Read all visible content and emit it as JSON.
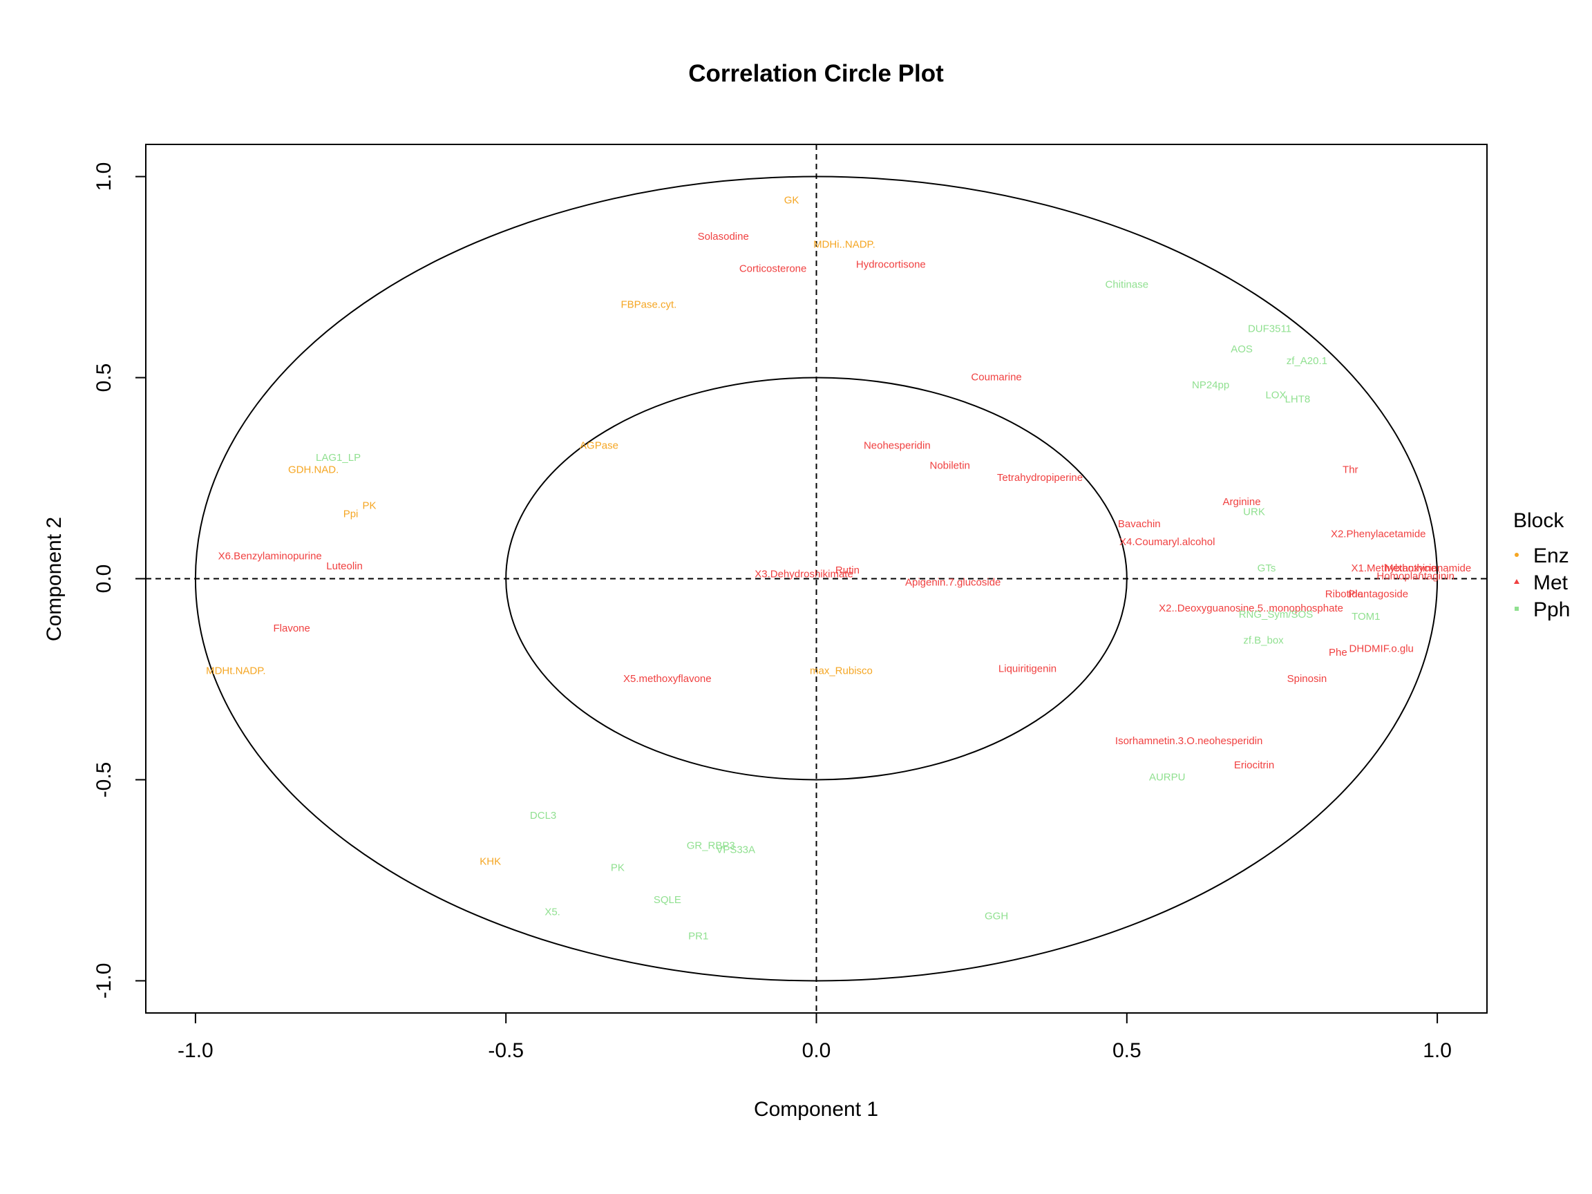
{
  "chart_data": {
    "type": "scatter",
    "title": "Correlation Circle Plot",
    "xlabel": "Component  1",
    "ylabel": "Component  2",
    "xlim": [
      -1.08,
      1.08
    ],
    "ylim": [
      -1.08,
      1.08
    ],
    "xticks": [
      -1.0,
      -0.5,
      0.0,
      0.5,
      1.0
    ],
    "yticks": [
      -1.0,
      -0.5,
      0.0,
      0.5,
      1.0
    ],
    "xtick_labels": [
      "-1.0",
      "-0.5",
      "0.0",
      "0.5",
      "1.0"
    ],
    "ytick_labels": [
      "-1.0",
      "-0.5",
      "0.0",
      "0.5",
      "1.0"
    ],
    "circles": [
      1.0,
      0.5
    ],
    "colors": {
      "Enz": "#F5A623",
      "Met": "#F04040",
      "Pph": "#90E090"
    },
    "legend": {
      "title": "Block",
      "position": "right",
      "items": [
        {
          "name": "Enz",
          "color": "#F5A623",
          "marker": "dot"
        },
        {
          "name": "Met",
          "color": "#F04040",
          "marker": "triangle"
        },
        {
          "name": "Pph",
          "color": "#90E090",
          "marker": "square"
        }
      ]
    },
    "series": [
      {
        "name": "Enz",
        "points": [
          {
            "label": "GK",
            "x": -0.04,
            "y": 0.94
          },
          {
            "label": "MDHi..NADP.",
            "x": 0.045,
            "y": 0.83
          },
          {
            "label": "FBPase.cyt.",
            "x": -0.27,
            "y": 0.68
          },
          {
            "label": "AGPase",
            "x": -0.35,
            "y": 0.33
          },
          {
            "label": "GDH.NAD.",
            "x": -0.81,
            "y": 0.27
          },
          {
            "label": "PK",
            "x": -0.72,
            "y": 0.18
          },
          {
            "label": "Ppi",
            "x": -0.75,
            "y": 0.16
          },
          {
            "label": "MDHt.NADP.",
            "x": -0.935,
            "y": -0.23
          },
          {
            "label": "max_Rubisco",
            "x": 0.04,
            "y": -0.23
          },
          {
            "label": "KHK",
            "x": -0.525,
            "y": -0.705
          }
        ]
      },
      {
        "name": "Met",
        "points": [
          {
            "label": "Solasodine",
            "x": -0.15,
            "y": 0.85
          },
          {
            "label": "Corticosterone",
            "x": -0.07,
            "y": 0.77
          },
          {
            "label": "Hydrocortisone",
            "x": 0.12,
            "y": 0.78
          },
          {
            "label": "Coumarine",
            "x": 0.29,
            "y": 0.5
          },
          {
            "label": "Neohesperidin",
            "x": 0.13,
            "y": 0.33
          },
          {
            "label": "Nobiletin",
            "x": 0.215,
            "y": 0.28
          },
          {
            "label": "Tetrahydropiperine",
            "x": 0.36,
            "y": 0.25
          },
          {
            "label": "Thr",
            "x": 0.86,
            "y": 0.27
          },
          {
            "label": "Arginine",
            "x": 0.685,
            "y": 0.19
          },
          {
            "label": "Bavachin",
            "x": 0.52,
            "y": 0.135
          },
          {
            "label": "X4.Coumaryl.alcohol",
            "x": 0.565,
            "y": 0.09
          },
          {
            "label": "X2.Phenylacetamide",
            "x": 0.905,
            "y": 0.11
          },
          {
            "label": "X6.Benzylaminopurine",
            "x": -0.88,
            "y": 0.055
          },
          {
            "label": "Luteolin",
            "x": -0.76,
            "y": 0.03
          },
          {
            "label": "X3.Dehydroshikimate",
            "x": -0.02,
            "y": 0.01
          },
          {
            "label": "Rutin",
            "x": 0.05,
            "y": 0.02
          },
          {
            "label": "Apigenin.7.glucoside",
            "x": 0.22,
            "y": -0.01
          },
          {
            "label": "X1.Methylxanthine",
            "x": 0.93,
            "y": 0.025
          },
          {
            "label": "Methoxycinnamide",
            "x": 0.985,
            "y": 0.025
          },
          {
            "label": "Homoplantaginin",
            "x": 0.965,
            "y": 0.005
          },
          {
            "label": "Ribotide",
            "x": 0.85,
            "y": -0.04
          },
          {
            "label": "Plantagoside",
            "x": 0.905,
            "y": -0.04
          },
          {
            "label": "X2..Deoxyguanosine.5..monophosphate",
            "x": 0.7,
            "y": -0.075
          },
          {
            "label": "Flavone",
            "x": -0.845,
            "y": -0.125
          },
          {
            "label": "DHDMIF.o.glu",
            "x": 0.91,
            "y": -0.175
          },
          {
            "label": "Phe",
            "x": 0.84,
            "y": -0.185
          },
          {
            "label": "X5.methoxyflavone",
            "x": -0.24,
            "y": -0.25
          },
          {
            "label": "Liquiritigenin",
            "x": 0.34,
            "y": -0.225
          },
          {
            "label": "Spinosin",
            "x": 0.79,
            "y": -0.25
          },
          {
            "label": "Isorhamnetin.3.O.neohesperidin",
            "x": 0.6,
            "y": -0.405
          },
          {
            "label": "Eriocitrin",
            "x": 0.705,
            "y": -0.465
          }
        ]
      },
      {
        "name": "Pph",
        "points": [
          {
            "label": "Chitinase",
            "x": 0.5,
            "y": 0.73
          },
          {
            "label": "DUF3511",
            "x": 0.73,
            "y": 0.62
          },
          {
            "label": "AOS",
            "x": 0.685,
            "y": 0.57
          },
          {
            "label": "zf_A20.1",
            "x": 0.79,
            "y": 0.54
          },
          {
            "label": "NP24pp",
            "x": 0.635,
            "y": 0.48
          },
          {
            "label": "LOX",
            "x": 0.74,
            "y": 0.455
          },
          {
            "label": "LHT8",
            "x": 0.775,
            "y": 0.445
          },
          {
            "label": "LAG1_LP",
            "x": -0.77,
            "y": 0.3
          },
          {
            "label": "URK",
            "x": 0.705,
            "y": 0.165
          },
          {
            "label": "GTs",
            "x": 0.725,
            "y": 0.025
          },
          {
            "label": "RNG_Sym/SOS",
            "x": 0.74,
            "y": -0.09
          },
          {
            "label": "TOM1",
            "x": 0.885,
            "y": -0.095
          },
          {
            "label": "zf.B_box",
            "x": 0.72,
            "y": -0.155
          },
          {
            "label": "AURPU",
            "x": 0.565,
            "y": -0.495
          },
          {
            "label": "DCL3",
            "x": -0.44,
            "y": -0.59
          },
          {
            "label": "GR_RBP3",
            "x": -0.17,
            "y": -0.665
          },
          {
            "label": "VPS33A",
            "x": -0.13,
            "y": -0.675
          },
          {
            "label": "PK",
            "x": -0.32,
            "y": -0.72
          },
          {
            "label": "SQLE",
            "x": -0.24,
            "y": -0.8
          },
          {
            "label": "X5.",
            "x": -0.425,
            "y": -0.83
          },
          {
            "label": "PR1",
            "x": -0.19,
            "y": -0.89
          },
          {
            "label": "GGH",
            "x": 0.29,
            "y": -0.84
          }
        ]
      }
    ]
  }
}
